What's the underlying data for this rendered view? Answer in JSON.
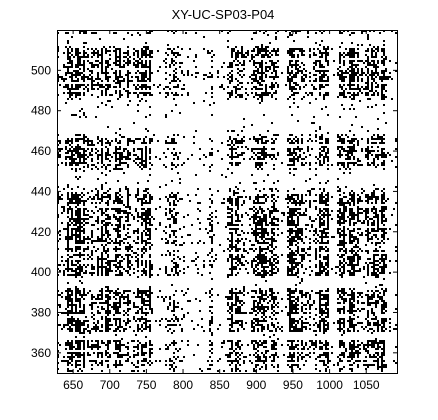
{
  "chart_data": {
    "type": "heatmap",
    "subtype": "binary recurrence plot",
    "title": "XY-UC-SP03-P04",
    "xlabel": "",
    "ylabel": "",
    "xlim": [
      628,
      1092
    ],
    "ylim": [
      350,
      520
    ],
    "xticks": [
      650,
      700,
      750,
      800,
      850,
      900,
      950,
      1000,
      1050
    ],
    "yticks": [
      360,
      380,
      400,
      420,
      440,
      460,
      480,
      500
    ],
    "grid": false,
    "colors": {
      "filled": "#000000",
      "empty": "#ffffff"
    },
    "dense_x_bands": [
      [
        640,
        665
      ],
      [
        672,
        700
      ],
      [
        705,
        730
      ],
      [
        738,
        760
      ],
      [
        775,
        790
      ],
      [
        862,
        880
      ],
      [
        895,
        925
      ],
      [
        945,
        965
      ],
      [
        985,
        998
      ],
      [
        1012,
        1040
      ],
      [
        1050,
        1075
      ]
    ],
    "sparse_x_bands": [
      [
        760,
        775
      ],
      [
        800,
        835
      ],
      [
        840,
        860
      ],
      [
        930,
        942
      ],
      [
        998,
        1010
      ],
      [
        1078,
        1090
      ]
    ],
    "dense_y_bands": [
      [
        353,
        366
      ],
      [
        370,
        392
      ],
      [
        398,
        412
      ],
      [
        414,
        438
      ],
      [
        452,
        466
      ],
      [
        487,
        512
      ]
    ],
    "sparse_y_bands": [
      [
        366,
        370
      ],
      [
        392,
        398
      ],
      [
        442,
        450
      ],
      [
        468,
        485
      ],
      [
        512,
        518
      ]
    ]
  }
}
